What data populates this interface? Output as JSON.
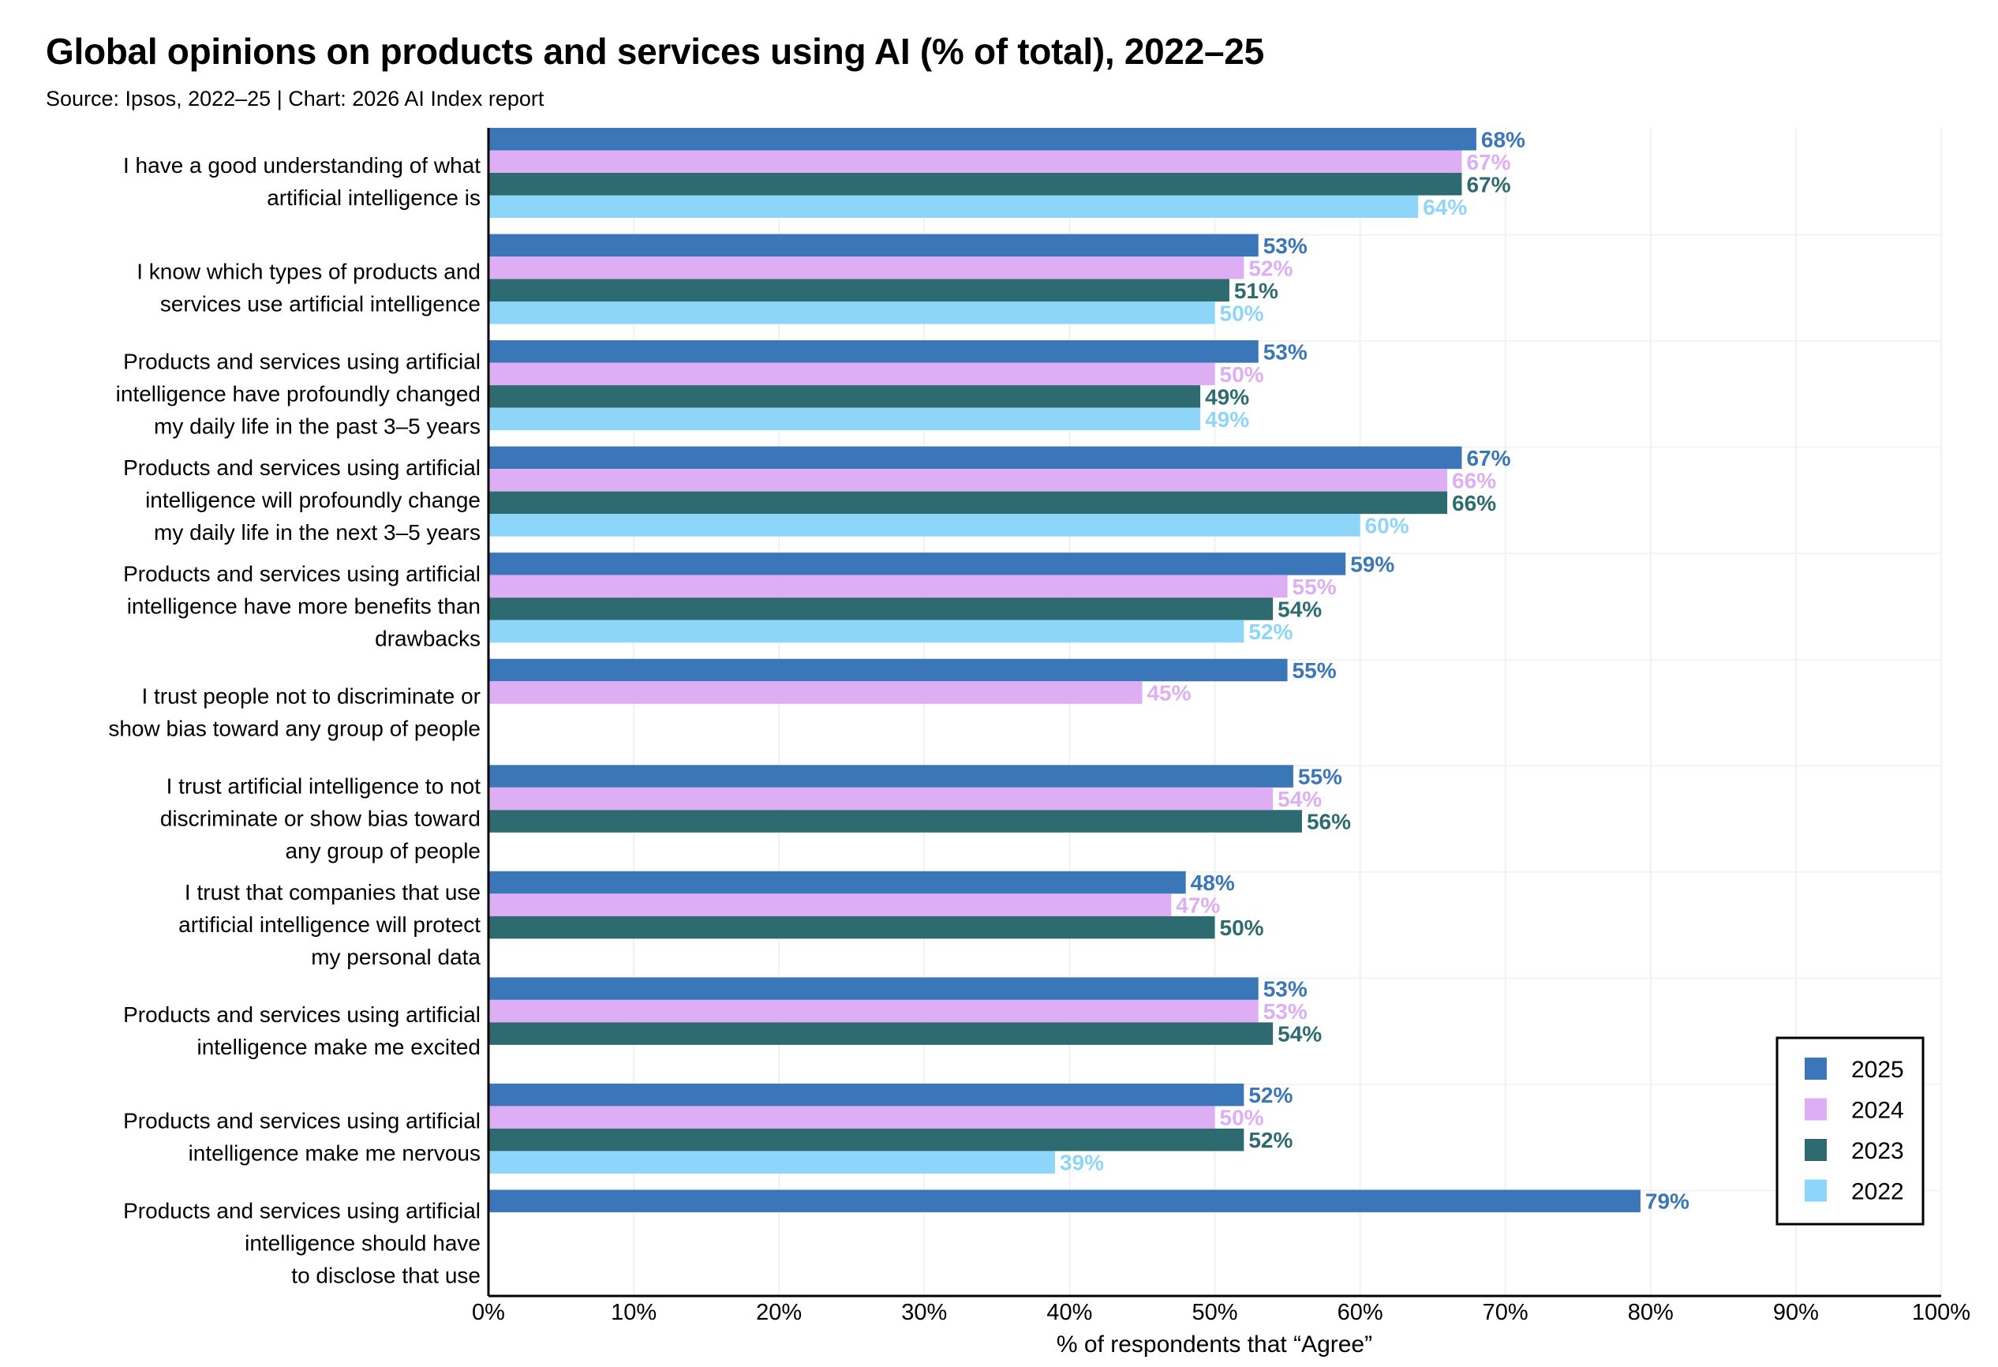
{
  "title": "Global opinions on products and services using AI (% of total), 2022–25",
  "subtitle": "Source: Ipsos, 2022–25 | Chart: 2026 AI Index report",
  "chart_data": {
    "type": "bar",
    "orientation": "horizontal",
    "title": "Global opinions on products and services using AI (% of total), 2022–25",
    "subtitle": "Source: Ipsos, 2022–25 | Chart: 2026 AI Index report",
    "xlabel": "% of respondents that “Agree”",
    "ylabel": "",
    "xlim": [
      0,
      100
    ],
    "xticks": [
      "0%",
      "10%",
      "20%",
      "30%",
      "40%",
      "50%",
      "60%",
      "70%",
      "80%",
      "90%",
      "100%"
    ],
    "grid": true,
    "legend_position": "bottom-right",
    "categories": [
      [
        "I have a good understanding of what",
        "artificial intelligence is"
      ],
      [
        "I know which types of products and",
        "services use artificial intelligence"
      ],
      [
        "Products and services using artificial",
        "intelligence have profoundly changed",
        "my daily life in the past 3–5 years"
      ],
      [
        "Products and services using artificial",
        "intelligence will profoundly change",
        "my daily life in the next 3–5 years"
      ],
      [
        "Products and services using artificial",
        "intelligence have more benefits than",
        "drawbacks"
      ],
      [
        "I trust people not to discriminate or",
        "show bias toward any group of people"
      ],
      [
        "I trust artificial intelligence to not",
        "discriminate or show bias toward",
        "any group of people"
      ],
      [
        "I trust that companies that use",
        "artificial intelligence will protect",
        "my personal data"
      ],
      [
        "Products and services using artificial",
        "intelligence make me excited"
      ],
      [
        "Products and services using artificial",
        "intelligence make me nervous"
      ],
      [
        "Products and services using artificial",
        "intelligence should have",
        "to disclose that use"
      ]
    ],
    "series": [
      {
        "name": "2025",
        "color": "#3a76b8",
        "values": [
          68,
          53,
          53,
          67,
          59,
          55,
          55.4,
          48,
          53,
          52,
          79.3
        ],
        "labels": [
          "68%",
          "53%",
          "53%",
          "67%",
          "59%",
          "55%",
          "55%",
          "48%",
          "53%",
          "52%",
          "79%"
        ]
      },
      {
        "name": "2024",
        "color": "#deaef5",
        "values": [
          67,
          52,
          50,
          66,
          55,
          45,
          54,
          47,
          53,
          50,
          null
        ],
        "labels": [
          "67%",
          "52%",
          "50%",
          "66%",
          "55%",
          "45%",
          "54%",
          "47%",
          "53%",
          "50%",
          null
        ]
      },
      {
        "name": "2023",
        "color": "#2e6b70",
        "values": [
          67,
          51,
          49,
          66,
          54,
          null,
          56,
          50,
          54,
          52,
          null
        ],
        "labels": [
          "67%",
          "51%",
          "49%",
          "66%",
          "54%",
          null,
          "56%",
          "50%",
          "54%",
          "52%",
          null
        ]
      },
      {
        "name": "2022",
        "color": "#8dd6fa",
        "values": [
          64,
          50,
          49,
          60,
          52,
          null,
          null,
          null,
          null,
          39,
          null
        ],
        "labels": [
          "64%",
          "50%",
          "49%",
          "60%",
          "52%",
          null,
          null,
          null,
          null,
          "39%",
          null
        ]
      }
    ]
  }
}
